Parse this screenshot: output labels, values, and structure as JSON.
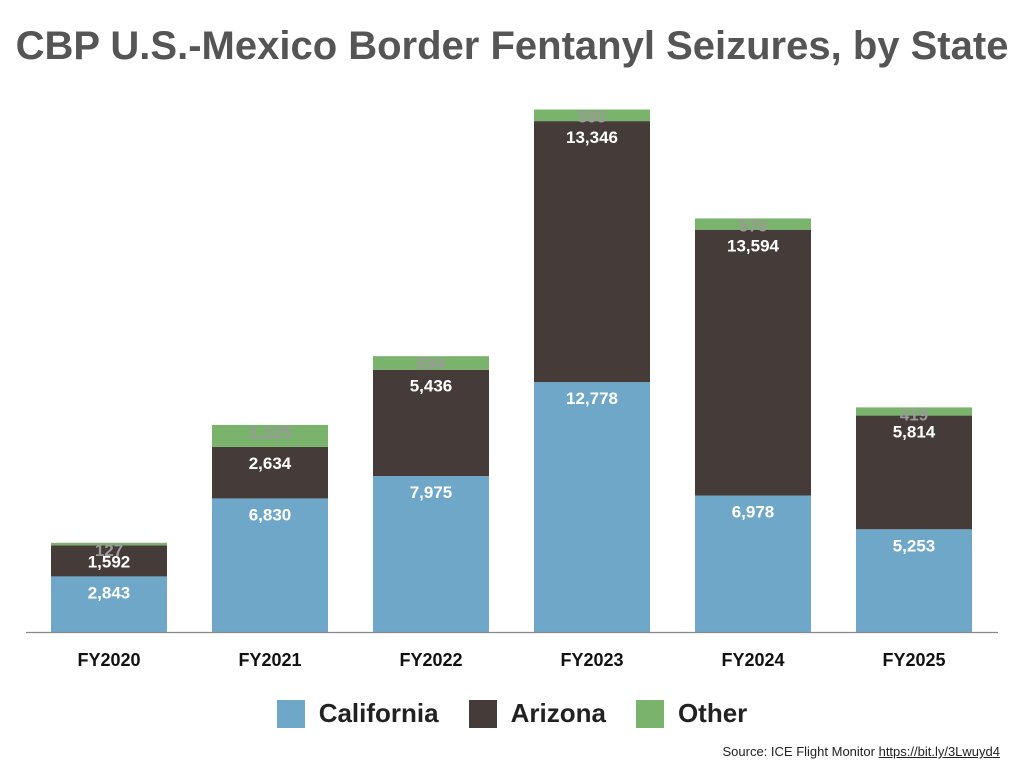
{
  "title": "CBP U.S.-Mexico Border Fentanyl Seizures, by State",
  "source": {
    "text": "Source: ICE Flight Monitor",
    "link": "https://bit.ly/3Lwuyd4"
  },
  "chart_data": {
    "type": "bar",
    "stacked": true,
    "title": "CBP U.S.-Mexico Border Fentanyl Seizures, by State",
    "categories": [
      "FY2020",
      "FY2021",
      "FY2022",
      "FY2023",
      "FY2024",
      "FY2025"
    ],
    "series": [
      {
        "name": "California",
        "color": "#6fa7c9",
        "values": [
          2843,
          6830,
          7975,
          12778,
          6978,
          5253
        ],
        "labels": [
          "2,843",
          "6,830",
          "7,975",
          "12,778",
          "6,978",
          "5,253"
        ]
      },
      {
        "name": "Arizona",
        "color": "#453b39",
        "values": [
          1592,
          2634,
          5436,
          13346,
          13594,
          5814
        ],
        "labels": [
          "1,592",
          "2,634",
          "5,436",
          "13,346",
          "13,594",
          "5,814"
        ]
      },
      {
        "name": "Other",
        "color": "#7ab36b",
        "values": [
          127,
          1125,
          694,
          595,
          576,
          419
        ],
        "labels": [
          "127",
          "1,125",
          "694",
          "595",
          "576",
          "419"
        ]
      }
    ],
    "ylim": [
      0,
      27000
    ],
    "grid": false,
    "legend": "bottom"
  }
}
